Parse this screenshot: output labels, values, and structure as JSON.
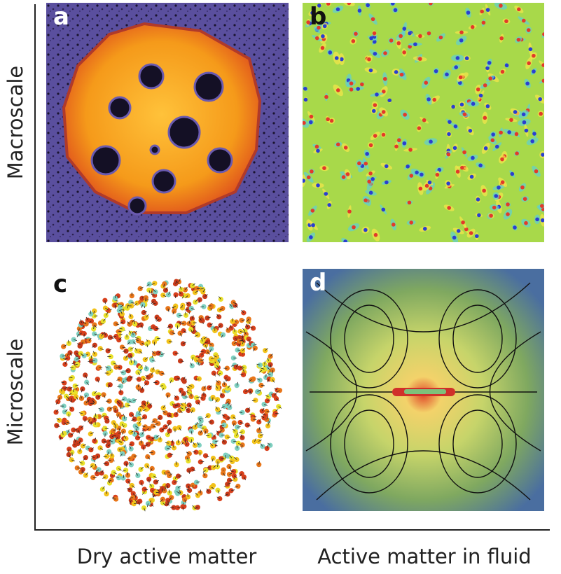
{
  "axes": {
    "y_label_top": "Macroscale",
    "y_label_bottom": "Microscale",
    "x_label_left": "Dry active matter",
    "x_label_right": "Active matter in fluid"
  },
  "panels": {
    "a": {
      "letter": "a"
    },
    "b": {
      "letter": "b"
    },
    "c": {
      "letter": "c"
    },
    "d": {
      "letter": "d"
    }
  }
}
